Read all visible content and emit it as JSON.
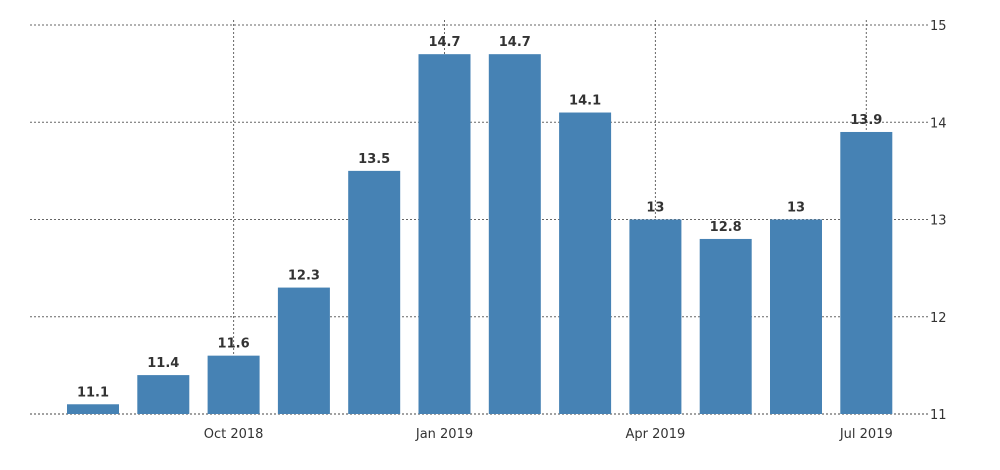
{
  "chart_data": {
    "type": "bar",
    "title": "",
    "xlabel": "",
    "ylabel": "",
    "values": [
      11.1,
      11.4,
      11.6,
      12.3,
      13.5,
      14.7,
      14.7,
      14.1,
      13,
      12.8,
      13,
      13.9
    ],
    "value_labels": [
      "11.1",
      "11.4",
      "11.6",
      "12.3",
      "13.5",
      "14.7",
      "14.7",
      "14.1",
      "13",
      "12.8",
      "13",
      "13.9"
    ],
    "x_ticks": [
      {
        "bar_index": 2,
        "label": "Oct 2018"
      },
      {
        "bar_index": 5,
        "label": "Jan 2019"
      },
      {
        "bar_index": 8,
        "label": "Apr 2019"
      },
      {
        "bar_index": 11,
        "label": "Jul 2019"
      }
    ],
    "ylim": [
      11,
      15
    ],
    "y_ticks": [
      "11",
      "12",
      "13",
      "14",
      "15"
    ],
    "y_axis_side": "right",
    "grid": true,
    "bar_color": "#4682b4",
    "legend": "none"
  }
}
